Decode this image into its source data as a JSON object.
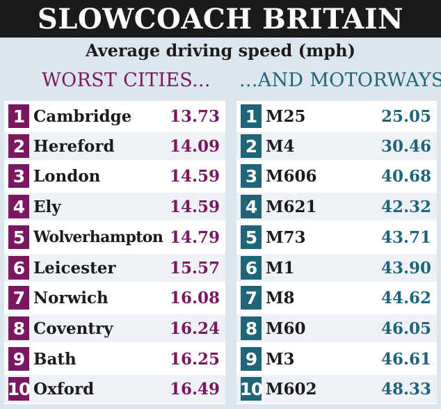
{
  "header": {
    "title": "SLOWCOACH BRITAIN",
    "subtitle": "Average driving speed (mph)",
    "cities_heading": "WORST CITIES...",
    "motorways_heading": "...AND MOTORWAYS"
  },
  "colors": {
    "cities_accent": "#7a1760",
    "motorways_accent": "#1f6478",
    "banner": "#1c1a1b",
    "background": "#dce6ee"
  },
  "cities": [
    {
      "rank": "1",
      "name": "Cambridge",
      "speed": "13.73"
    },
    {
      "rank": "2",
      "name": "Hereford",
      "speed": "14.09"
    },
    {
      "rank": "3",
      "name": "London",
      "speed": "14.59"
    },
    {
      "rank": "4",
      "name": "Ely",
      "speed": "14.59"
    },
    {
      "rank": "5",
      "name": "Wolverhampton",
      "speed": "14.79"
    },
    {
      "rank": "6",
      "name": "Leicester",
      "speed": "15.57"
    },
    {
      "rank": "7",
      "name": "Norwich",
      "speed": "16.08"
    },
    {
      "rank": "8",
      "name": "Coventry",
      "speed": "16.24"
    },
    {
      "rank": "9",
      "name": "Bath",
      "speed": "16.25"
    },
    {
      "rank": "10",
      "name": "Oxford",
      "speed": "16.49"
    }
  ],
  "motorways": [
    {
      "rank": "1",
      "name": "M25",
      "speed": "25.05"
    },
    {
      "rank": "2",
      "name": "M4",
      "speed": "30.46"
    },
    {
      "rank": "3",
      "name": "M606",
      "speed": "40.68"
    },
    {
      "rank": "4",
      "name": "M621",
      "speed": "42.32"
    },
    {
      "rank": "5",
      "name": "M73",
      "speed": "43.71"
    },
    {
      "rank": "6",
      "name": "M1",
      "speed": "43.90"
    },
    {
      "rank": "7",
      "name": "M8",
      "speed": "44.62"
    },
    {
      "rank": "8",
      "name": "M60",
      "speed": "46.05"
    },
    {
      "rank": "9",
      "name": "M3",
      "speed": "46.61"
    },
    {
      "rank": "10",
      "name": "M602",
      "speed": "48.33"
    }
  ]
}
